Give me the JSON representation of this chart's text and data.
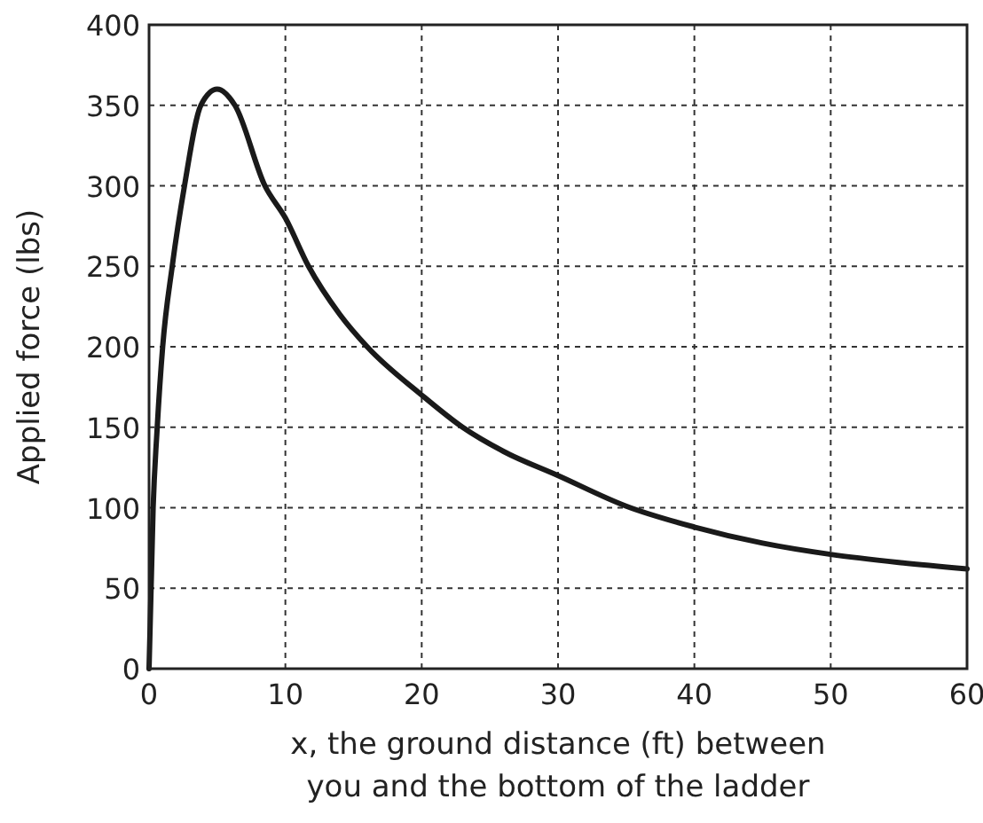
{
  "chart_data": {
    "type": "line",
    "xlabel": "x, the ground distance (ft) between you and the bottom of the ladder",
    "ylabel": "Applied force (lbs)",
    "x": [
      0,
      0.3,
      0.6,
      1,
      1.7,
      2.6,
      3.8,
      5,
      6.3,
      8.5,
      10,
      11.7,
      14,
      16,
      20,
      23,
      26,
      30,
      35,
      40,
      45,
      50,
      55,
      60
    ],
    "series": [
      {
        "color": "#1a1a1a",
        "values": [
          0,
          100,
          150,
          200,
          250,
          300,
          350,
          360,
          350,
          300,
          280,
          250,
          220,
          200,
          170,
          150,
          135,
          120,
          101,
          88,
          78,
          71,
          66,
          62
        ]
      }
    ],
    "xlim": [
      0,
      60
    ],
    "xticks": [
      0,
      10,
      20,
      30,
      40,
      50,
      60
    ],
    "ylim": [
      0,
      400
    ],
    "yticks": [
      0,
      50,
      100,
      150,
      200,
      250,
      300,
      350,
      400
    ],
    "grid": true,
    "line_style": "solid",
    "marker": "none"
  }
}
